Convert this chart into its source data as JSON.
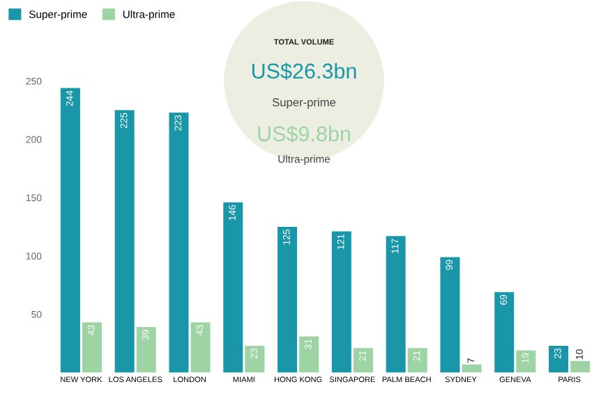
{
  "chart_data": {
    "type": "bar",
    "categories": [
      "NEW YORK",
      "LOS ANGELES",
      "LONDON",
      "MIAMI",
      "HONG KONG",
      "SINGAPORE",
      "PALM BEACH",
      "SYDNEY",
      "GENEVA",
      "PARIS"
    ],
    "series": [
      {
        "name": "Super-prime",
        "color": "#1a96a9",
        "values": [
          244,
          225,
          223,
          146,
          125,
          121,
          117,
          99,
          69,
          23
        ]
      },
      {
        "name": "Ultra-prime",
        "color": "#9ed3a4",
        "values": [
          43,
          39,
          43,
          23,
          31,
          21,
          21,
          7,
          19,
          10
        ]
      }
    ],
    "ylim": [
      0,
      250
    ],
    "yticks": [
      50,
      100,
      150,
      200,
      250
    ],
    "grid": false,
    "legend": "top left",
    "data_labels": true,
    "annotations": [
      "TOTAL VOLUME",
      "US$26.3bn",
      "Super-prime",
      "US$9.8bn",
      "Ultra-prime"
    ]
  }
}
